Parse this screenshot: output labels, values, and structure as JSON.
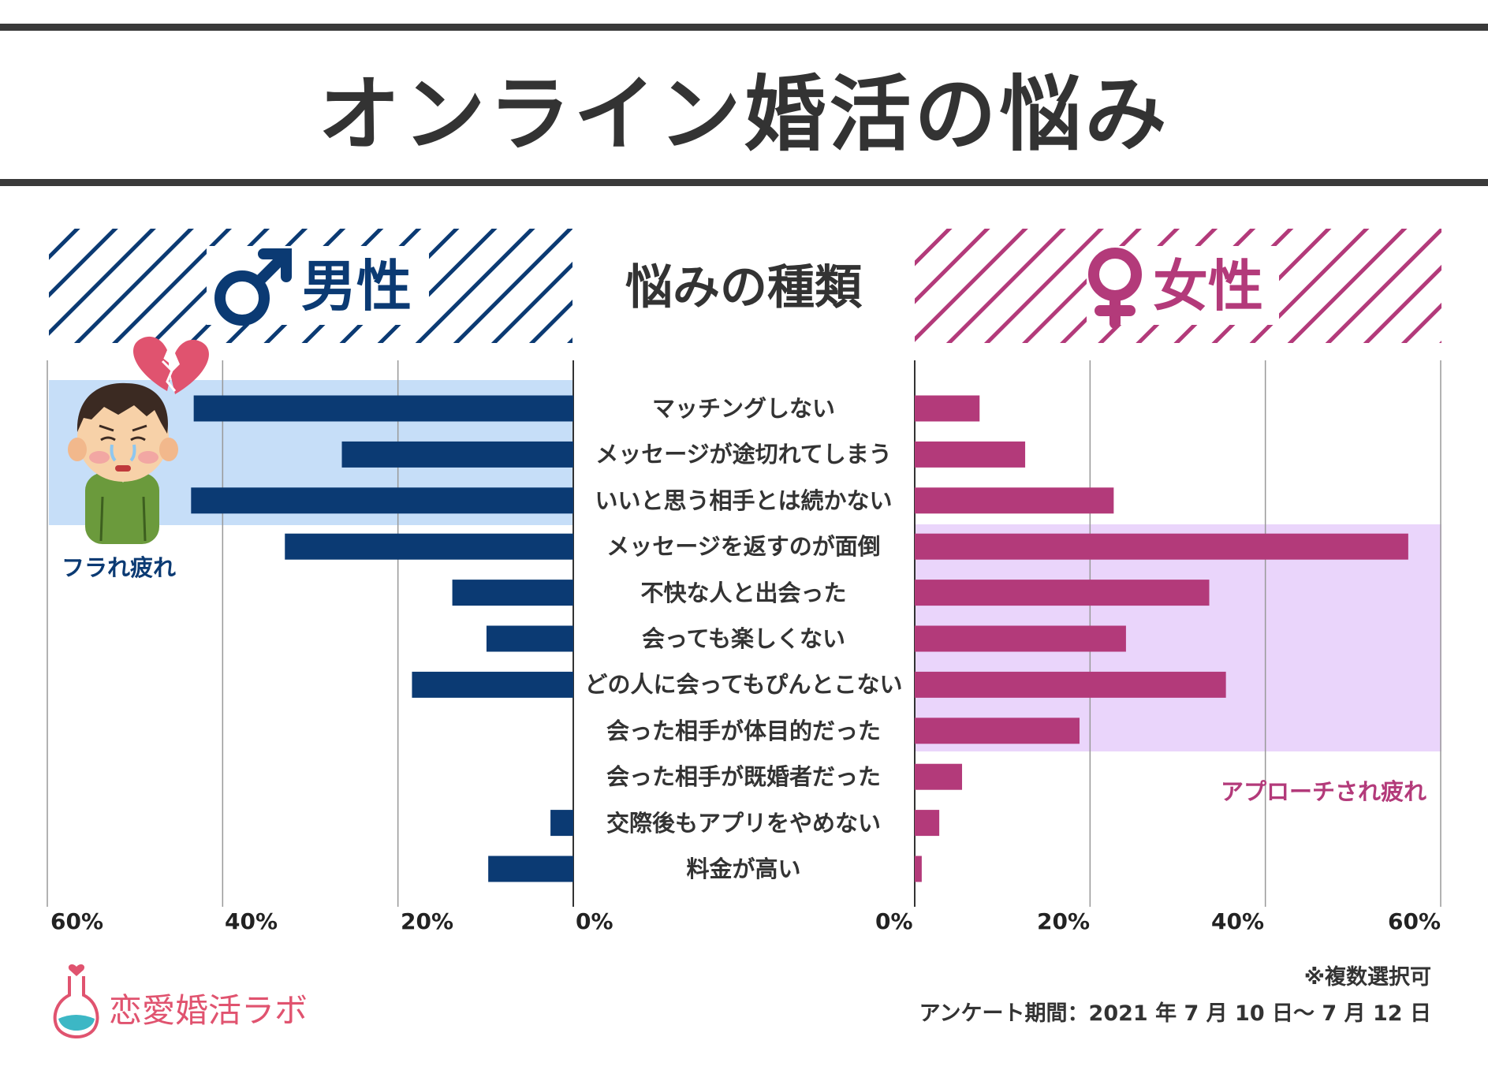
{
  "title": "オンライン婚活の悩み",
  "headings": {
    "male": "男性",
    "female": "女性",
    "center": "悩みの種類"
  },
  "colors": {
    "male": "#0b3a73",
    "female": "#b33a7a",
    "male_highlight": "#c6def8",
    "female_highlight": "#ead5fb",
    "dark": "#3a3a3a"
  },
  "icons": {
    "male": "mars-symbol-icon",
    "female": "venus-symbol-icon",
    "heart": "broken-heart-icon",
    "person": "sad-man-illustration",
    "logo": "flask-heart-icon"
  },
  "annotations": {
    "male": "フラれ疲れ",
    "female": "アプローチされ疲れ"
  },
  "chart_data": {
    "type": "bar",
    "categories": [
      "マッチングしない",
      "メッセージが途切れてしまう",
      "いいと思う相手とは続かない",
      "メッセージを返すのが面倒",
      "不快な人と出会った",
      "会っても楽しくない",
      "どの人に会ってもぴんとこない",
      "会った相手が体目的だった",
      "会った相手が既婚者だった",
      "交際後もアプリをやめない",
      "料金が高い"
    ],
    "series": [
      {
        "name": "男性",
        "values": [
          43.3,
          26.4,
          43.6,
          32.9,
          13.8,
          9.9,
          18.4,
          0,
          0,
          2.6,
          9.7
        ]
      },
      {
        "name": "女性",
        "values": [
          7.4,
          12.6,
          22.7,
          56.3,
          33.6,
          24.1,
          35.5,
          18.8,
          5.4,
          2.8,
          0.8
        ]
      }
    ],
    "xlim": [
      0,
      60
    ],
    "ticks": [
      0,
      20,
      40,
      60
    ],
    "tick_labels_male": [
      "60%",
      "40%",
      "20%",
      "0%"
    ],
    "tick_labels_female": [
      "0%",
      "20%",
      "40%",
      "60%"
    ],
    "highlights": [
      {
        "series": "男性",
        "categories": [
          "マッチングしない",
          "メッセージが途切れてしまう",
          "いいと思う相手とは続かない"
        ],
        "label": "フラれ疲れ"
      },
      {
        "series": "女性",
        "categories": [
          "メッセージを返すのが面倒",
          "不快な人と出会った",
          "会っても楽しくない",
          "どの人に会ってもぴんとこない",
          "会った相手が体目的だった"
        ],
        "label": "アプローチされ疲れ"
      }
    ]
  },
  "footer": {
    "logo": "恋愛婚活ラボ",
    "note": "※複数選択可",
    "period": "アンケート期間：2021 年 7 月 10 日～ 7 月 12 日"
  }
}
